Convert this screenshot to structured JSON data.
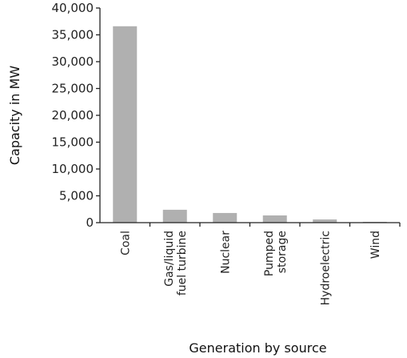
{
  "chart_data": {
    "type": "bar",
    "categories": [
      [
        "Coal"
      ],
      [
        "Gas/liquid",
        "fuel turbine"
      ],
      [
        "Nuclear"
      ],
      [
        "Pumped",
        "storage"
      ],
      [
        "Hydroelectric"
      ],
      [
        "Wind"
      ]
    ],
    "values": [
      36600,
      2400,
      1800,
      1350,
      600,
      150
    ],
    "ylim": [
      0,
      40000
    ],
    "yticks": [
      "0",
      "5,000",
      "10,000",
      "15,000",
      "20,000",
      "25,000",
      "30,000",
      "35,000",
      "40,000"
    ],
    "xlabel": "Generation by source",
    "ylabel": "Capacity in MW",
    "bar_color": "#b0b0b0",
    "grid": false,
    "legend": "none"
  }
}
